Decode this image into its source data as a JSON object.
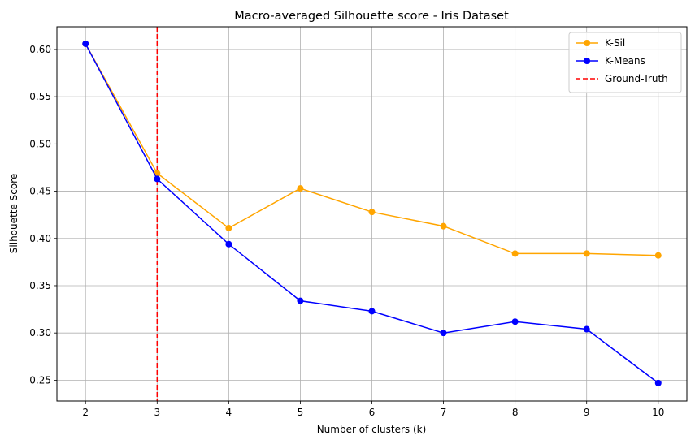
{
  "chart_data": {
    "type": "line",
    "title": "Macro-averaged Silhouette score - Iris Dataset",
    "xlabel": "Number of clusters (k)",
    "ylabel": "Silhouette Score",
    "x": [
      2,
      3,
      4,
      5,
      6,
      7,
      8,
      9,
      10
    ],
    "xlim": [
      1.6,
      10.4
    ],
    "ylim": [
      0.228,
      0.624
    ],
    "xticks": [
      2,
      3,
      4,
      5,
      6,
      7,
      8,
      9,
      10
    ],
    "yticks": [
      "0.25",
      "0.30",
      "0.35",
      "0.40",
      "0.45",
      "0.50",
      "0.55",
      "0.60"
    ],
    "grid": true,
    "legend_position": "top-right",
    "series": [
      {
        "name": "K-Sil",
        "color": "#ffa500",
        "marker": "circle",
        "values": [
          0.606,
          0.469,
          0.411,
          0.453,
          0.428,
          0.413,
          0.384,
          0.384,
          0.382
        ]
      },
      {
        "name": "K-Means",
        "color": "#0000ff",
        "marker": "circle",
        "values": [
          0.606,
          0.463,
          0.394,
          0.334,
          0.323,
          0.3,
          0.312,
          0.304,
          0.247
        ]
      }
    ],
    "reference_lines": [
      {
        "name": "Ground-Truth",
        "orientation": "vertical",
        "x": 3,
        "color": "#ff0000",
        "style": "dashed"
      }
    ]
  }
}
